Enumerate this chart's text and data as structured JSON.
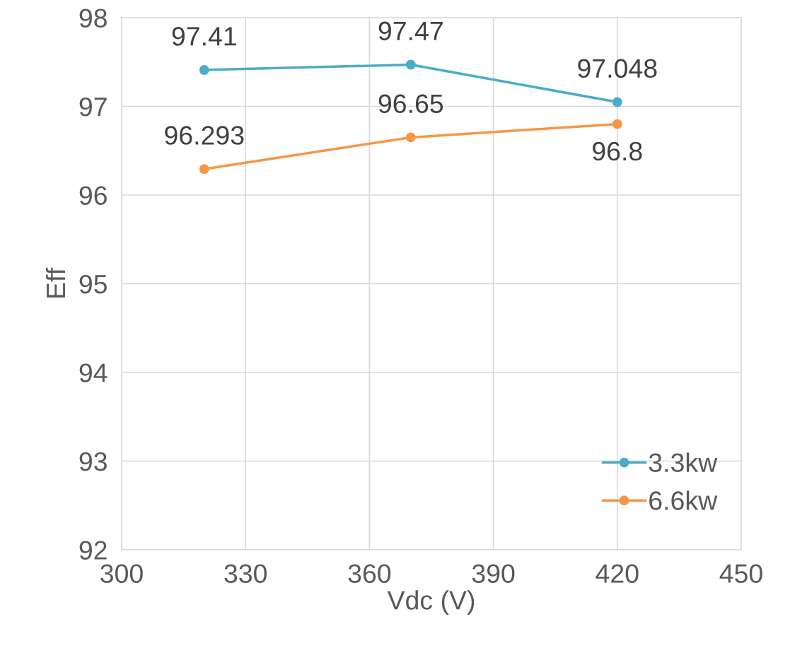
{
  "chart_data": {
    "type": "line",
    "xlabel": "Vdc (V)",
    "ylabel": "Eff",
    "x": [
      320,
      370,
      420
    ],
    "series": [
      {
        "name": "3.3kw",
        "color": "#4bacc6",
        "values": [
          97.41,
          97.47,
          97.048
        ],
        "value_labels": [
          "97.41",
          "97.47",
          "97.048"
        ]
      },
      {
        "name": "6.6kw",
        "color": "#f79646",
        "values": [
          96.293,
          96.65,
          96.8
        ],
        "value_labels": [
          "96.293",
          "96.65",
          "96.8"
        ]
      }
    ],
    "xlim": [
      300,
      450
    ],
    "xticks": [
      300,
      330,
      360,
      390,
      420,
      450
    ],
    "ylim": [
      92,
      98
    ],
    "yticks": [
      92,
      93,
      94,
      95,
      96,
      97,
      98
    ],
    "grid": true,
    "legend": "bottom right",
    "marker": "circle",
    "line_style": "solid"
  }
}
